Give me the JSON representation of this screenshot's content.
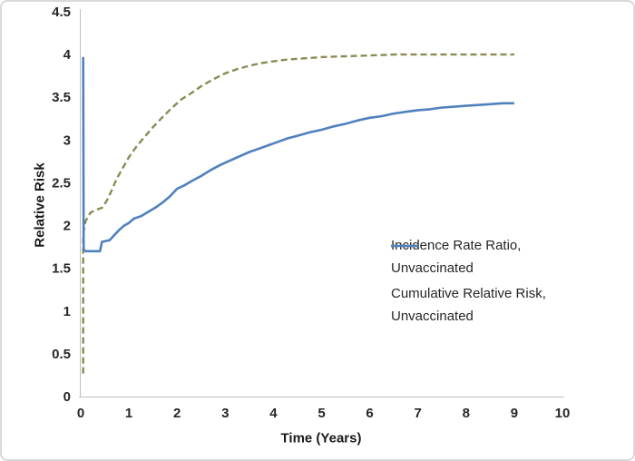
{
  "frame": {
    "background": "#ffffff",
    "border_color": "#d9d9d9",
    "axis_line_color": "#bfbfbf"
  },
  "chart_data": {
    "type": "line",
    "title": "",
    "xlabel": "Time (Years)",
    "ylabel": "Relative Risk",
    "xlim": [
      0,
      10
    ],
    "ylim": [
      0,
      4.5
    ],
    "x_ticks": [
      "0",
      "1",
      "2",
      "3",
      "4",
      "5",
      "6",
      "7",
      "8",
      "9",
      "10"
    ],
    "x_tick_values": [
      0,
      1,
      2,
      3,
      4,
      5,
      6,
      7,
      8,
      9,
      10
    ],
    "y_ticks": [
      "0",
      "0.5",
      "1",
      "1.5",
      "2",
      "2.5",
      "3",
      "3.5",
      "4",
      "4.5"
    ],
    "y_tick_values": [
      0,
      0.5,
      1,
      1.5,
      2,
      2.5,
      3,
      3.5,
      4,
      4.5
    ],
    "grid": false,
    "legend_position": "center-right",
    "series": [
      {
        "name": "Incidence Rate Ratio, Unvaccinated",
        "color": "#8b8b55",
        "style": "dashed",
        "points": [
          [
            0.05,
            0.27
          ],
          [
            0.05,
            1.9
          ],
          [
            0.1,
            2.05
          ],
          [
            0.2,
            2.15
          ],
          [
            0.3,
            2.18
          ],
          [
            0.45,
            2.21
          ],
          [
            0.55,
            2.3
          ],
          [
            0.65,
            2.42
          ],
          [
            0.75,
            2.55
          ],
          [
            0.9,
            2.7
          ],
          [
            1.0,
            2.8
          ],
          [
            1.15,
            2.92
          ],
          [
            1.3,
            3.02
          ],
          [
            1.5,
            3.15
          ],
          [
            1.7,
            3.27
          ],
          [
            1.9,
            3.38
          ],
          [
            2.1,
            3.48
          ],
          [
            2.3,
            3.55
          ],
          [
            2.5,
            3.63
          ],
          [
            2.75,
            3.71
          ],
          [
            3.0,
            3.78
          ],
          [
            3.25,
            3.83
          ],
          [
            3.5,
            3.87
          ],
          [
            3.75,
            3.9
          ],
          [
            4.0,
            3.92
          ],
          [
            4.25,
            3.94
          ],
          [
            4.5,
            3.95
          ],
          [
            4.75,
            3.96
          ],
          [
            5.0,
            3.97
          ],
          [
            5.5,
            3.98
          ],
          [
            6.0,
            3.99
          ],
          [
            6.5,
            4.0
          ],
          [
            7.0,
            4.0
          ],
          [
            7.5,
            4.0
          ],
          [
            8.0,
            4.0
          ],
          [
            8.5,
            4.0
          ],
          [
            9.0,
            4.0
          ]
        ]
      },
      {
        "name": "Cumulative Relative Risk, Unvaccinated",
        "color": "#4f81bd",
        "style": "solid",
        "points": [
          [
            0.05,
            3.97
          ],
          [
            0.06,
            1.72
          ],
          [
            0.1,
            1.7
          ],
          [
            0.4,
            1.7
          ],
          [
            0.44,
            1.81
          ],
          [
            0.6,
            1.83
          ],
          [
            0.7,
            1.89
          ],
          [
            0.8,
            1.95
          ],
          [
            0.9,
            2.0
          ],
          [
            1.0,
            2.03
          ],
          [
            1.1,
            2.08
          ],
          [
            1.25,
            2.11
          ],
          [
            1.4,
            2.16
          ],
          [
            1.55,
            2.21
          ],
          [
            1.7,
            2.27
          ],
          [
            1.85,
            2.34
          ],
          [
            2.0,
            2.43
          ],
          [
            2.15,
            2.47
          ],
          [
            2.3,
            2.52
          ],
          [
            2.5,
            2.58
          ],
          [
            2.7,
            2.65
          ],
          [
            2.9,
            2.71
          ],
          [
            3.1,
            2.76
          ],
          [
            3.3,
            2.81
          ],
          [
            3.5,
            2.86
          ],
          [
            3.7,
            2.9
          ],
          [
            3.9,
            2.94
          ],
          [
            4.1,
            2.98
          ],
          [
            4.3,
            3.02
          ],
          [
            4.5,
            3.05
          ],
          [
            4.75,
            3.09
          ],
          [
            5.0,
            3.12
          ],
          [
            5.25,
            3.16
          ],
          [
            5.5,
            3.19
          ],
          [
            5.75,
            3.23
          ],
          [
            6.0,
            3.26
          ],
          [
            6.25,
            3.28
          ],
          [
            6.5,
            3.31
          ],
          [
            6.75,
            3.33
          ],
          [
            7.0,
            3.35
          ],
          [
            7.25,
            3.36
          ],
          [
            7.5,
            3.38
          ],
          [
            7.75,
            3.39
          ],
          [
            8.0,
            3.4
          ],
          [
            8.25,
            3.41
          ],
          [
            8.5,
            3.42
          ],
          [
            8.75,
            3.43
          ],
          [
            9.0,
            3.43
          ]
        ]
      }
    ]
  }
}
